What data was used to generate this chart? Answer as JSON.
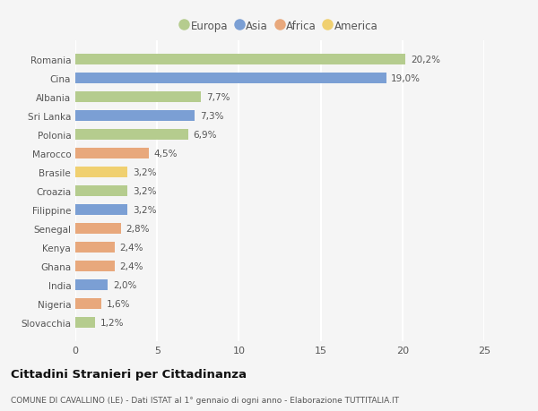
{
  "countries": [
    "Romania",
    "Cina",
    "Albania",
    "Sri Lanka",
    "Polonia",
    "Marocco",
    "Brasile",
    "Croazia",
    "Filippine",
    "Senegal",
    "Kenya",
    "Ghana",
    "India",
    "Nigeria",
    "Slovacchia"
  ],
  "values": [
    20.2,
    19.0,
    7.7,
    7.3,
    6.9,
    4.5,
    3.2,
    3.2,
    3.2,
    2.8,
    2.4,
    2.4,
    2.0,
    1.6,
    1.2
  ],
  "labels": [
    "20,2%",
    "19,0%",
    "7,7%",
    "7,3%",
    "6,9%",
    "4,5%",
    "3,2%",
    "3,2%",
    "3,2%",
    "2,8%",
    "2,4%",
    "2,4%",
    "2,0%",
    "1,6%",
    "1,2%"
  ],
  "continents": [
    "Europa",
    "Asia",
    "Europa",
    "Asia",
    "Europa",
    "Africa",
    "America",
    "Europa",
    "Asia",
    "Africa",
    "Africa",
    "Africa",
    "Asia",
    "Africa",
    "Europa"
  ],
  "colors": {
    "Europa": "#b5cc8e",
    "Asia": "#7b9fd4",
    "Africa": "#e8a87c",
    "America": "#f0d070"
  },
  "legend_order": [
    "Europa",
    "Asia",
    "Africa",
    "America"
  ],
  "title": "Cittadini Stranieri per Cittadinanza",
  "subtitle": "COMUNE DI CAVALLINO (LE) - Dati ISTAT al 1° gennaio di ogni anno - Elaborazione TUTTITALIA.IT",
  "xlim": [
    0,
    25
  ],
  "xticks": [
    0,
    5,
    10,
    15,
    20,
    25
  ],
  "background_color": "#f5f5f5",
  "grid_color": "#ffffff"
}
